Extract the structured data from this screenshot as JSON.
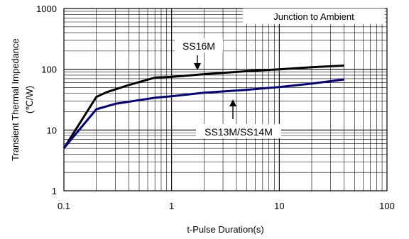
{
  "chart_data": {
    "type": "line",
    "xlabel": "t-Pulse Duration(s)",
    "ylabel": "Transient Thermal Impedance",
    "ylabel_unit": "(℃/W)",
    "x_scale": "log",
    "y_scale": "log",
    "xlim": [
      0.1,
      100
    ],
    "ylim": [
      1,
      1000
    ],
    "x_ticks": [
      "0.1",
      "1",
      "10",
      "100"
    ],
    "y_ticks": [
      "1",
      "10",
      "100",
      "1000"
    ],
    "grid": true,
    "annotation_box": "Junction to Ambient",
    "series": [
      {
        "name": "SS16M",
        "color": "#000000",
        "points": [
          [
            0.1,
            5
          ],
          [
            0.2,
            35
          ],
          [
            0.25,
            42
          ],
          [
            0.4,
            55
          ],
          [
            0.7,
            73
          ],
          [
            1,
            75
          ],
          [
            2,
            83
          ],
          [
            5,
            93
          ],
          [
            10,
            100
          ],
          [
            20,
            108
          ],
          [
            40,
            115
          ]
        ]
      },
      {
        "name": "SS13M/SS14M",
        "color": "#00007f",
        "points": [
          [
            0.1,
            5
          ],
          [
            0.2,
            22
          ],
          [
            0.3,
            27
          ],
          [
            0.7,
            34
          ],
          [
            1,
            36
          ],
          [
            2,
            41
          ],
          [
            5,
            46
          ],
          [
            10,
            51
          ],
          [
            20,
            58
          ],
          [
            40,
            68
          ]
        ]
      }
    ],
    "labels": [
      {
        "text": "SS16M",
        "series": "SS16M",
        "arrow": "down"
      },
      {
        "text": "SS13M/SS14M",
        "series": "SS13M/SS14M",
        "arrow": "up"
      }
    ]
  }
}
